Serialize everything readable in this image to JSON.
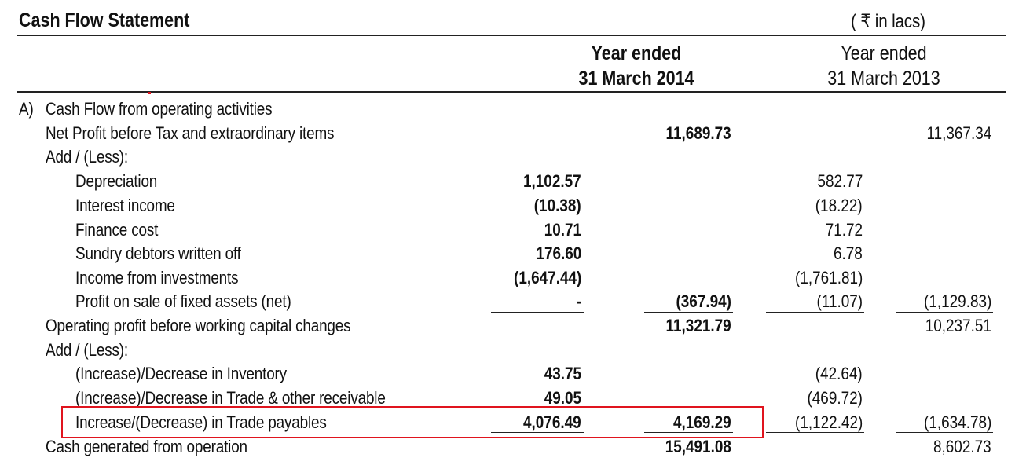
{
  "header": {
    "title": "Cash Flow Statement",
    "unit": "( ₹ in lacs)",
    "col2014_line1": "Year ended",
    "col2014_line2": "31 March 2014",
    "col2013_line1": "Year ended",
    "col2013_line2": "31 March 2013"
  },
  "section": {
    "marker": "A)",
    "title": "Cash Flow from operating activities"
  },
  "rows": [
    {
      "label": "Net Profit before Tax and extraordinary items",
      "c1": "",
      "c2": "11,689.73",
      "c3": "",
      "c4": "11,367.34"
    },
    {
      "label": "Add / (Less):",
      "c1": "",
      "c2": "",
      "c3": "",
      "c4": ""
    },
    {
      "label": "Depreciation",
      "c1": "1,102.57",
      "c2": "",
      "c3": "582.77",
      "c4": ""
    },
    {
      "label": "Interest income",
      "c1": "(10.38)",
      "c2": "",
      "c3": "(18.22)",
      "c4": ""
    },
    {
      "label": "Finance cost",
      "c1": "10.71",
      "c2": "",
      "c3": "71.72",
      "c4": ""
    },
    {
      "label": "Sundry debtors written off",
      "c1": "176.60",
      "c2": "",
      "c3": "6.78",
      "c4": ""
    },
    {
      "label": "Income from investments",
      "c1": "(1,647.44)",
      "c2": "",
      "c3": "(1,761.81)",
      "c4": ""
    },
    {
      "label": "Profit on sale of fixed assets (net)",
      "c1": "-",
      "c2": "(367.94)",
      "c3": "(11.07)",
      "c4": "(1,129.83)"
    },
    {
      "label": "Operating profit before working capital changes",
      "c1": "",
      "c2": "11,321.79",
      "c3": "",
      "c4": "10,237.51"
    },
    {
      "label": "Add / (Less):",
      "c1": "",
      "c2": "",
      "c3": "",
      "c4": ""
    },
    {
      "label": "(Increase)/Decrease in Inventory",
      "c1": "43.75",
      "c2": "",
      "c3": "(42.64)",
      "c4": ""
    },
    {
      "label": "(Increase)/Decrease in Trade & other receivable",
      "c1": "49.05",
      "c2": "",
      "c3": "(469.72)",
      "c4": ""
    },
    {
      "label": "Increase/(Decrease) in Trade payables",
      "c1": "4,076.49",
      "c2": "4,169.29",
      "c3": "(1,122.42)",
      "c4": "(1,634.78)"
    },
    {
      "label": "Cash generated from operation",
      "c1": "",
      "c2": "15,491.08",
      "c3": "",
      "c4": "8,602.73"
    }
  ],
  "colors": {
    "highlight_box": "#e0141e",
    "text": "#111111"
  }
}
